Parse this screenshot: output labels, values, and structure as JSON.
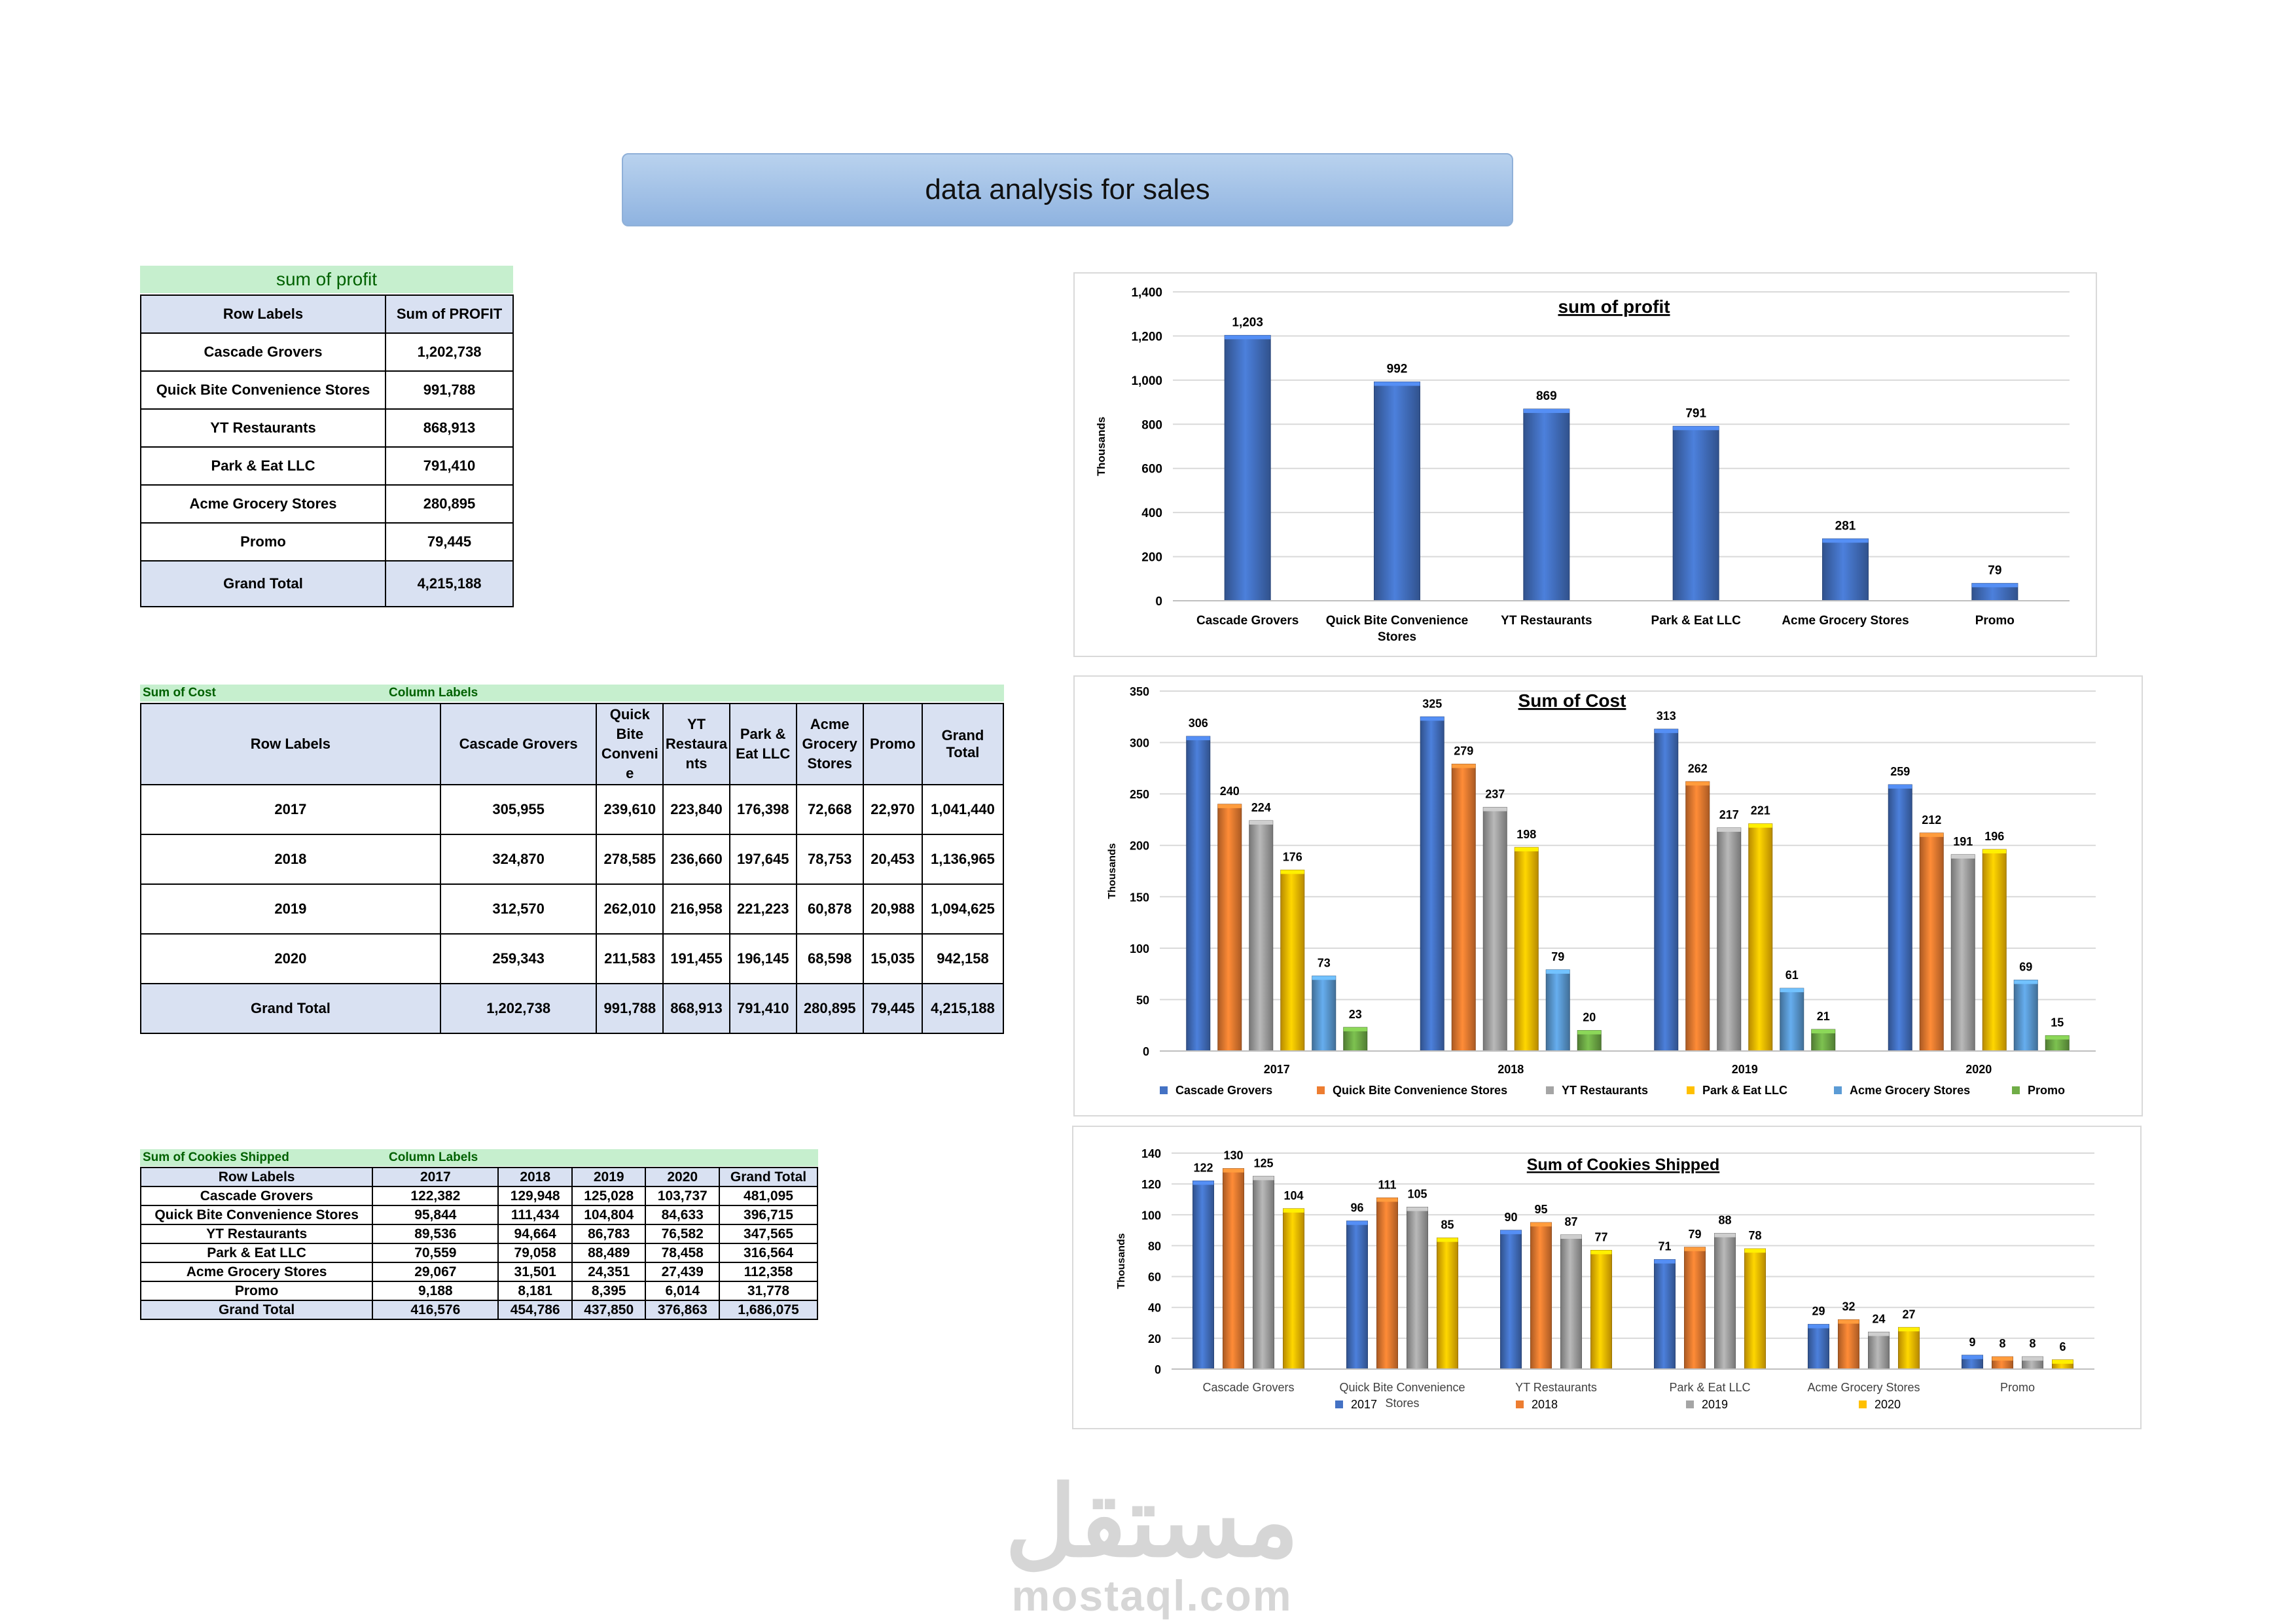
{
  "banner": {
    "title": "data analysis for  sales"
  },
  "profit_table": {
    "band_title": "sum of profit",
    "headers": [
      "Row Labels",
      "Sum of PROFIT"
    ],
    "rows": [
      [
        "Cascade Grovers",
        "1,202,738"
      ],
      [
        "Quick Bite Convenience Stores",
        "991,788"
      ],
      [
        "YT Restaurants",
        "868,913"
      ],
      [
        "Park & Eat LLC",
        "791,410"
      ],
      [
        "Acme Grocery Stores",
        "280,895"
      ],
      [
        "Promo",
        "79,445"
      ]
    ],
    "grand_total": [
      "Grand Total",
      "4,215,188"
    ]
  },
  "cost_table": {
    "band_left": "Sum of Cost",
    "band_right": "Column Labels",
    "headers": [
      "Row Labels",
      "Cascade Grovers",
      "Quick Bite Convenie",
      "YT Restaura nts",
      "Park & Eat LLC",
      "Acme Grocery Stores",
      "Promo",
      "Grand Total"
    ],
    "rows": [
      [
        "2017",
        "305,955",
        "239,610",
        "223,840",
        "176,398",
        "72,668",
        "22,970",
        "1,041,440"
      ],
      [
        "2018",
        "324,870",
        "278,585",
        "236,660",
        "197,645",
        "78,753",
        "20,453",
        "1,136,965"
      ],
      [
        "2019",
        "312,570",
        "262,010",
        "216,958",
        "221,223",
        "60,878",
        "20,988",
        "1,094,625"
      ],
      [
        "2020",
        "259,343",
        "211,583",
        "191,455",
        "196,145",
        "68,598",
        "15,035",
        "942,158"
      ]
    ],
    "grand_total": [
      "Grand Total",
      "1,202,738",
      "991,788",
      "868,913",
      "791,410",
      "280,895",
      "79,445",
      "4,215,188"
    ]
  },
  "cookies_table": {
    "band_left": "Sum of Cookies Shipped",
    "band_right": "Column Labels",
    "headers": [
      "Row Labels",
      "2017",
      "2018",
      "2019",
      "2020",
      "Grand Total"
    ],
    "rows": [
      [
        "Cascade Grovers",
        "122,382",
        "129,948",
        "125,028",
        "103,737",
        "481,095"
      ],
      [
        "Quick Bite Convenience Stores",
        "95,844",
        "111,434",
        "104,804",
        "84,633",
        "396,715"
      ],
      [
        "YT Restaurants",
        "89,536",
        "94,664",
        "86,783",
        "76,582",
        "347,565"
      ],
      [
        "Park & Eat LLC",
        "70,559",
        "79,058",
        "88,489",
        "78,458",
        "316,564"
      ],
      [
        "Acme Grocery Stores",
        "29,067",
        "31,501",
        "24,351",
        "27,439",
        "112,358"
      ],
      [
        "Promo",
        "9,188",
        "8,181",
        "8,395",
        "6,014",
        "31,778"
      ]
    ],
    "grand_total": [
      "Grand Total",
      "416,576",
      "454,786",
      "437,850",
      "376,863",
      "1,686,075"
    ]
  },
  "watermark": {
    "arabic": "مستقل",
    "latin": "mostaql.com"
  },
  "colors": {
    "blue": "#4472c4",
    "orange": "#ed7d31",
    "gray": "#a5a5a5",
    "yellow": "#ffc000",
    "lightblue": "#5b9bd5",
    "green": "#70ad47"
  },
  "chart_data": [
    {
      "id": "profit",
      "type": "bar",
      "title": "sum of profit",
      "ylabel": "Thousands",
      "ylim": [
        0,
        1400
      ],
      "yticks": [
        0,
        200,
        400,
        600,
        800,
        1000,
        1200,
        1400
      ],
      "ytick_labels": [
        "0",
        "200",
        "400",
        "600",
        "800",
        "1,000",
        "1,200",
        "1,400"
      ],
      "categories": [
        "Cascade Grovers",
        "Quick Bite Convenience Stores",
        "YT Restaurants",
        "Park & Eat LLC",
        "Acme Grocery Stores",
        "Promo"
      ],
      "series": [
        {
          "name": "Sum of PROFIT",
          "color": "#4472c4",
          "values": [
            1203,
            992,
            869,
            791,
            281,
            79
          ],
          "labels": [
            "1,203",
            "992",
            "869",
            "791",
            "281",
            "79"
          ]
        }
      ]
    },
    {
      "id": "cost",
      "type": "bar",
      "title": "Sum of Cost",
      "ylabel": "Thousands",
      "ylim": [
        0,
        350
      ],
      "yticks": [
        0,
        50,
        100,
        150,
        200,
        250,
        300,
        350
      ],
      "ytick_labels": [
        "0",
        "50",
        "100",
        "150",
        "200",
        "250",
        "300",
        "350"
      ],
      "categories": [
        "2017",
        "2018",
        "2019",
        "2020"
      ],
      "legend": "bottom",
      "series": [
        {
          "name": "Cascade Grovers",
          "color": "#4472c4",
          "values": [
            306,
            325,
            313,
            259
          ],
          "labels": [
            "306",
            "325",
            "313",
            "259"
          ]
        },
        {
          "name": "Quick Bite Convenience Stores",
          "color": "#ed7d31",
          "values": [
            240,
            279,
            262,
            212
          ],
          "labels": [
            "240",
            "279",
            "262",
            "212"
          ]
        },
        {
          "name": "YT Restaurants",
          "color": "#a5a5a5",
          "values": [
            224,
            237,
            217,
            191
          ],
          "labels": [
            "224",
            "237",
            "217",
            "191"
          ]
        },
        {
          "name": "Park & Eat LLC",
          "color": "#ffc000",
          "values": [
            176,
            198,
            221,
            196
          ],
          "labels": [
            "176",
            "198",
            "221",
            "196"
          ]
        },
        {
          "name": "Acme Grocery Stores",
          "color": "#5b9bd5",
          "values": [
            73,
            79,
            61,
            69
          ],
          "labels": [
            "73",
            "79",
            "61",
            "69"
          ]
        },
        {
          "name": "Promo",
          "color": "#70ad47",
          "values": [
            23,
            20,
            21,
            15
          ],
          "labels": [
            "23",
            "20",
            "21",
            "15"
          ]
        }
      ]
    },
    {
      "id": "cookies",
      "type": "bar",
      "title": "Sum of Cookies Shipped",
      "ylabel": "Thousands",
      "ylim": [
        0,
        140
      ],
      "yticks": [
        0,
        20,
        40,
        60,
        80,
        100,
        120,
        140
      ],
      "ytick_labels": [
        "0",
        "20",
        "40",
        "60",
        "80",
        "100",
        "120",
        "140"
      ],
      "categories": [
        "Cascade Grovers",
        "Quick Bite Convenience Stores",
        "YT Restaurants",
        "Park & Eat LLC",
        "Acme Grocery Stores",
        "Promo"
      ],
      "legend": "bottom",
      "series": [
        {
          "name": "2017",
          "color": "#4472c4",
          "values": [
            122,
            96,
            90,
            71,
            29,
            9
          ],
          "labels": [
            "122",
            "96",
            "90",
            "71",
            "29",
            "9"
          ]
        },
        {
          "name": "2018",
          "color": "#ed7d31",
          "values": [
            130,
            111,
            95,
            79,
            32,
            8
          ],
          "labels": [
            "130",
            "111",
            "95",
            "79",
            "32",
            "8"
          ]
        },
        {
          "name": "2019",
          "color": "#a5a5a5",
          "values": [
            125,
            105,
            87,
            88,
            24,
            8
          ],
          "labels": [
            "125",
            "105",
            "87",
            "88",
            "24",
            "8"
          ]
        },
        {
          "name": "2020",
          "color": "#ffc000",
          "values": [
            104,
            85,
            77,
            78,
            27,
            6
          ],
          "labels": [
            "104",
            "85",
            "77",
            "78",
            "27",
            "6"
          ]
        }
      ]
    }
  ]
}
